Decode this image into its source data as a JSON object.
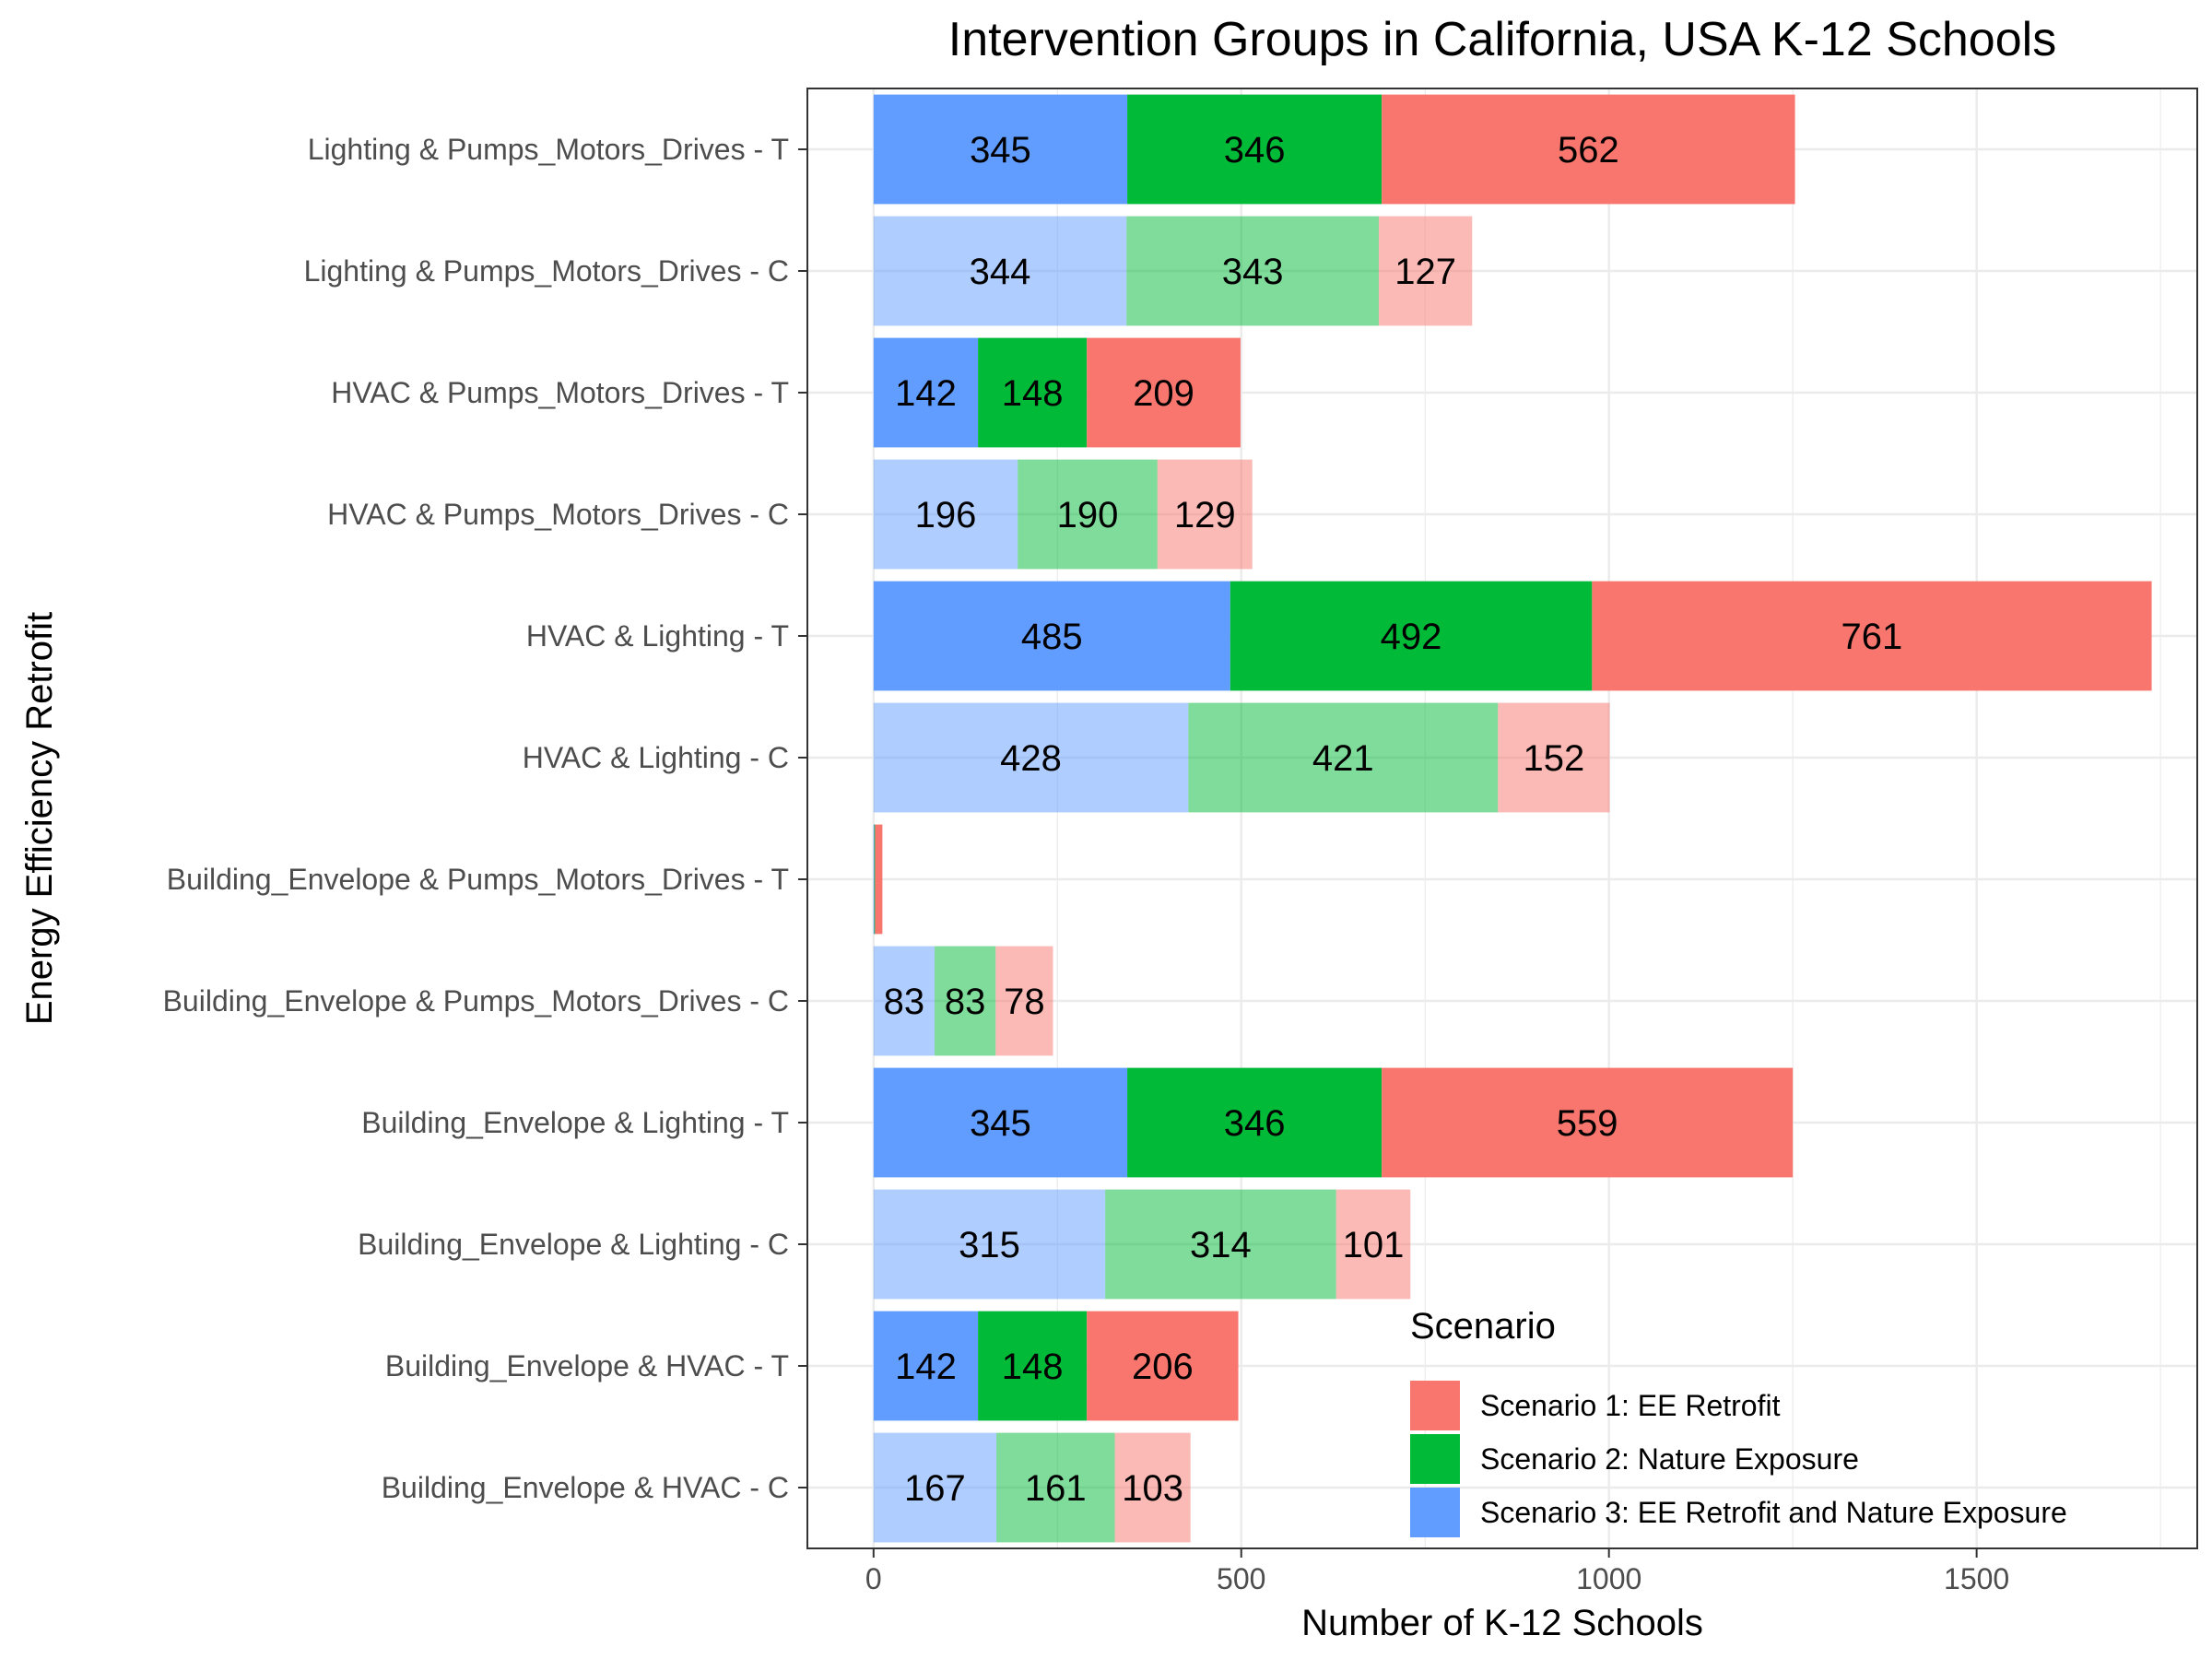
{
  "chart_data": {
    "type": "bar",
    "orientation": "horizontal",
    "stacked": true,
    "title": "Intervention Groups in California, USA K-12 Schools",
    "xlabel": "Number of K-12 Schools",
    "ylabel": "Energy Efficiency Retrofit",
    "xlim": [
      -90,
      1800
    ],
    "xticks": [
      0,
      500,
      1000,
      1500
    ],
    "grid": true,
    "categories": [
      "Lighting & Pumps_Motors_Drives - T",
      "Lighting & Pumps_Motors_Drives - C",
      "HVAC & Pumps_Motors_Drives - T",
      "HVAC & Pumps_Motors_Drives - C",
      "HVAC & Lighting - T",
      "HVAC & Lighting - C",
      "Building_Envelope & Pumps_Motors_Drives - T",
      "Building_Envelope & Pumps_Motors_Drives - C",
      "Building_Envelope & Lighting - T",
      "Building_Envelope & Lighting - C",
      "Building_Envelope & HVAC - T",
      "Building_Envelope & HVAC - C"
    ],
    "stack_order": [
      "Scenario 3: EE Retrofit and Nature Exposure",
      "Scenario 2: Nature Exposure",
      "Scenario 1: EE Retrofit"
    ],
    "series": [
      {
        "name": "Scenario 1: EE Retrofit",
        "color": "#F8766D",
        "values": [
          562,
          127,
          209,
          129,
          761,
          152,
          10,
          78,
          559,
          101,
          206,
          103
        ],
        "labels": [
          "562",
          "127",
          "209",
          "129",
          "761",
          "152",
          "",
          "78",
          "559",
          "101",
          "206",
          "103"
        ]
      },
      {
        "name": "Scenario 2: Nature Exposure",
        "color": "#00BA38",
        "values": [
          346,
          343,
          148,
          190,
          492,
          421,
          1,
          83,
          346,
          314,
          148,
          161
        ],
        "labels": [
          "346",
          "343",
          "148",
          "190",
          "492",
          "421",
          "",
          "83",
          "346",
          "314",
          "148",
          "161"
        ]
      },
      {
        "name": "Scenario 3: EE Retrofit and Nature Exposure",
        "color": "#619CFF",
        "values": [
          345,
          344,
          142,
          196,
          485,
          428,
          1,
          83,
          345,
          315,
          142,
          167
        ],
        "labels": [
          "345",
          "344",
          "142",
          "196",
          "485",
          "428",
          "",
          "83",
          "345",
          "315",
          "142",
          "167"
        ]
      }
    ],
    "control_rows_faded": true,
    "legend": {
      "title": "Scenario",
      "position": "bottom-right inside",
      "entries": [
        "Scenario 1: EE Retrofit",
        "Scenario 2: Nature Exposure",
        "Scenario 3: EE Retrofit and Nature Exposure"
      ]
    }
  }
}
